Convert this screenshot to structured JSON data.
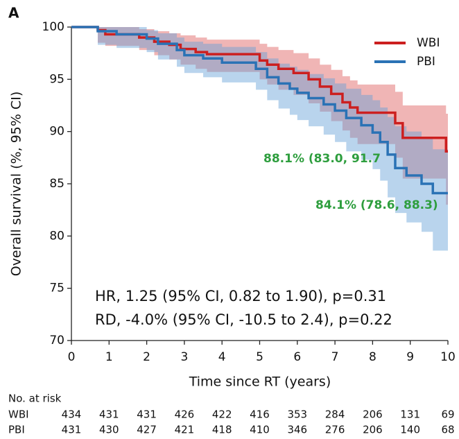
{
  "chart_data": {
    "type": "step",
    "panel_label": "A",
    "ylabel": "Overall survival (%, 95% CI)",
    "xlabel": "Time since RT (years)",
    "xlim": [
      0,
      10
    ],
    "xticks": [
      0,
      1,
      2,
      3,
      4,
      5,
      6,
      7,
      8,
      9,
      10
    ],
    "ylim": [
      70,
      100
    ],
    "yticks": [
      70,
      75,
      80,
      85,
      90,
      95,
      100
    ],
    "legend": "upper right",
    "series": [
      {
        "name": "WBI",
        "color": "#cc1f1f",
        "band_color": "rgba(222,90,90,0.45)",
        "x": [
          0,
          0.7,
          0.9,
          1.8,
          2.2,
          2.6,
          2.9,
          3.3,
          3.6,
          5.0,
          5.2,
          5.5,
          5.9,
          6.3,
          6.6,
          6.9,
          7.2,
          7.4,
          7.6,
          8.6,
          8.8,
          9.95,
          10
        ],
        "values": [
          100,
          99.7,
          99.3,
          99.0,
          98.6,
          98.3,
          97.9,
          97.6,
          97.4,
          96.8,
          96.4,
          96.0,
          95.6,
          95.0,
          94.3,
          93.6,
          92.8,
          92.3,
          91.8,
          90.8,
          89.4,
          88.1,
          88.1
        ],
        "lower": [
          100,
          98.5,
          98.2,
          97.8,
          97.3,
          96.9,
          96.4,
          96.0,
          95.7,
          95.0,
          94.5,
          94.0,
          93.5,
          92.7,
          91.9,
          91.0,
          90.1,
          89.4,
          88.8,
          87.5,
          85.5,
          83.0,
          83.0
        ],
        "upper": [
          100,
          100,
          100,
          99.8,
          99.6,
          99.4,
          99.2,
          99.0,
          98.8,
          98.4,
          98.1,
          97.8,
          97.5,
          97.0,
          96.4,
          95.9,
          95.3,
          94.9,
          94.5,
          93.8,
          92.5,
          91.7,
          91.7
        ]
      },
      {
        "name": "PBI",
        "color": "#2a72b5",
        "band_color": "rgba(100,160,215,0.45)",
        "x": [
          0,
          0.7,
          1.2,
          2.0,
          2.3,
          2.8,
          3.0,
          3.5,
          4.0,
          4.9,
          5.2,
          5.5,
          5.8,
          6.0,
          6.3,
          6.7,
          7.0,
          7.3,
          7.7,
          8.0,
          8.2,
          8.4,
          8.6,
          8.9,
          9.3,
          9.6,
          10
        ],
        "values": [
          100,
          99.6,
          99.3,
          98.9,
          98.4,
          97.8,
          97.3,
          97.0,
          96.6,
          96.0,
          95.2,
          94.6,
          94.1,
          93.7,
          93.2,
          92.6,
          92.0,
          91.3,
          90.6,
          89.9,
          89.0,
          87.8,
          86.5,
          85.8,
          85.0,
          84.1,
          84.1
        ],
        "lower": [
          100,
          98.3,
          98.0,
          97.6,
          96.9,
          96.2,
          95.6,
          95.2,
          94.7,
          94.0,
          93.0,
          92.2,
          91.6,
          91.1,
          90.5,
          89.7,
          89.0,
          88.1,
          87.3,
          86.4,
          85.3,
          83.7,
          82.2,
          81.3,
          80.4,
          78.6,
          78.6
        ],
        "upper": [
          100,
          100,
          100,
          99.7,
          99.4,
          99.0,
          98.6,
          98.4,
          98.1,
          97.6,
          97.0,
          96.5,
          96.2,
          95.9,
          95.5,
          95.1,
          94.6,
          94.1,
          93.5,
          93.0,
          92.3,
          91.4,
          90.5,
          90.0,
          89.3,
          88.3,
          88.3
        ]
      }
    ],
    "annotations": [
      "88.1% (83.0, 91.7",
      "84.1% (78.6, 88.3)",
      "HR, 1.25 (95% CI, 0.82 to 1.90), p=0.31",
      "RD, -4.0% (95% CI, -10.5 to 2.4), p=0.22"
    ],
    "annotation_color": "#2e9e3e",
    "risk_table": {
      "title": "No. at risk",
      "rows": [
        [
          434,
          431,
          431,
          426,
          422,
          416,
          353,
          284,
          206,
          131,
          69
        ],
        [
          431,
          430,
          427,
          421,
          418,
          410,
          346,
          276,
          206,
          140,
          68
        ]
      ]
    }
  }
}
